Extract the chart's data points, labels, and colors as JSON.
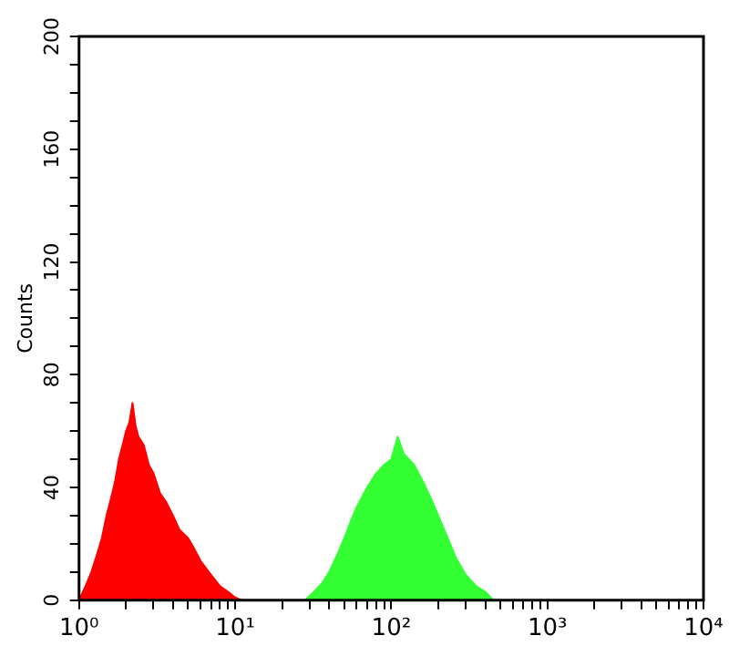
{
  "chart_data": {
    "type": "area",
    "ylabel": "Counts",
    "log": "x",
    "grid": false,
    "legend": false,
    "marker": "none",
    "xlim": [
      1,
      10000
    ],
    "ylim": [
      0,
      200
    ],
    "xticks": [
      {
        "value": 1,
        "label": "10⁰"
      },
      {
        "value": 2,
        "label": null
      },
      {
        "value": 3,
        "label": null
      },
      {
        "value": 4,
        "label": null
      },
      {
        "value": 5,
        "label": null
      },
      {
        "value": 6,
        "label": null
      },
      {
        "value": 7,
        "label": null
      },
      {
        "value": 8,
        "label": null
      },
      {
        "value": 9,
        "label": null
      },
      {
        "value": 10,
        "label": "10¹"
      },
      {
        "value": 20,
        "label": null
      },
      {
        "value": 30,
        "label": null
      },
      {
        "value": 40,
        "label": null
      },
      {
        "value": 50,
        "label": null
      },
      {
        "value": 60,
        "label": null
      },
      {
        "value": 70,
        "label": null
      },
      {
        "value": 80,
        "label": null
      },
      {
        "value": 90,
        "label": null
      },
      {
        "value": 100,
        "label": "10²"
      },
      {
        "value": 200,
        "label": null
      },
      {
        "value": 300,
        "label": null
      },
      {
        "value": 400,
        "label": null
      },
      {
        "value": 500,
        "label": null
      },
      {
        "value": 600,
        "label": null
      },
      {
        "value": 700,
        "label": null
      },
      {
        "value": 800,
        "label": null
      },
      {
        "value": 900,
        "label": null
      },
      {
        "value": 1000,
        "label": "10³"
      },
      {
        "value": 2000,
        "label": null
      },
      {
        "value": 3000,
        "label": null
      },
      {
        "value": 4000,
        "label": null
      },
      {
        "value": 5000,
        "label": null
      },
      {
        "value": 6000,
        "label": null
      },
      {
        "value": 7000,
        "label": null
      },
      {
        "value": 8000,
        "label": null
      },
      {
        "value": 9000,
        "label": null
      },
      {
        "value": 10000,
        "label": "10⁴"
      }
    ],
    "yticks": [
      0,
      {
        "value": 10,
        "label": null
      },
      {
        "value": 20,
        "label": null
      },
      {
        "value": 30,
        "label": null
      },
      40,
      {
        "value": 50,
        "label": null
      },
      {
        "value": 60,
        "label": null
      },
      {
        "value": 70,
        "label": null
      },
      80,
      {
        "value": 90,
        "label": null
      },
      {
        "value": 100,
        "label": null
      },
      {
        "value": 110,
        "label": null
      },
      120,
      {
        "value": 130,
        "label": null
      },
      {
        "value": 140,
        "label": null
      },
      {
        "value": 150,
        "label": null
      },
      160,
      {
        "value": 170,
        "label": null
      },
      {
        "value": 180,
        "label": null
      },
      {
        "value": 190,
        "label": null
      },
      200
    ],
    "series": [
      {
        "color": "#ff0000",
        "x": [
          1.0,
          1.1,
          1.2,
          1.3,
          1.4,
          1.5,
          1.6,
          1.7,
          1.8,
          1.9,
          2.0,
          2.1,
          2.2,
          2.3,
          2.4,
          2.6,
          2.8,
          3.0,
          3.3,
          3.6,
          4.0,
          4.4,
          5.0,
          5.5,
          6.0,
          7.0,
          8.0,
          9.0,
          10,
          11
        ],
        "values": [
          0,
          5,
          10,
          16,
          22,
          30,
          36,
          42,
          50,
          55,
          60,
          63,
          70,
          62,
          58,
          55,
          48,
          45,
          38,
          35,
          30,
          25,
          22,
          18,
          14,
          9,
          5,
          3,
          1,
          0
        ]
      },
      {
        "color": "#33ff33",
        "x": [
          28,
          32,
          36,
          40,
          45,
          50,
          55,
          60,
          70,
          80,
          90,
          100,
          110,
          120,
          140,
          160,
          180,
          200,
          230,
          260,
          300,
          350,
          400,
          450
        ],
        "values": [
          0,
          3,
          6,
          10,
          16,
          22,
          28,
          33,
          40,
          45,
          48,
          50,
          58,
          52,
          48,
          42,
          36,
          30,
          22,
          15,
          9,
          5,
          3,
          0
        ]
      }
    ]
  }
}
